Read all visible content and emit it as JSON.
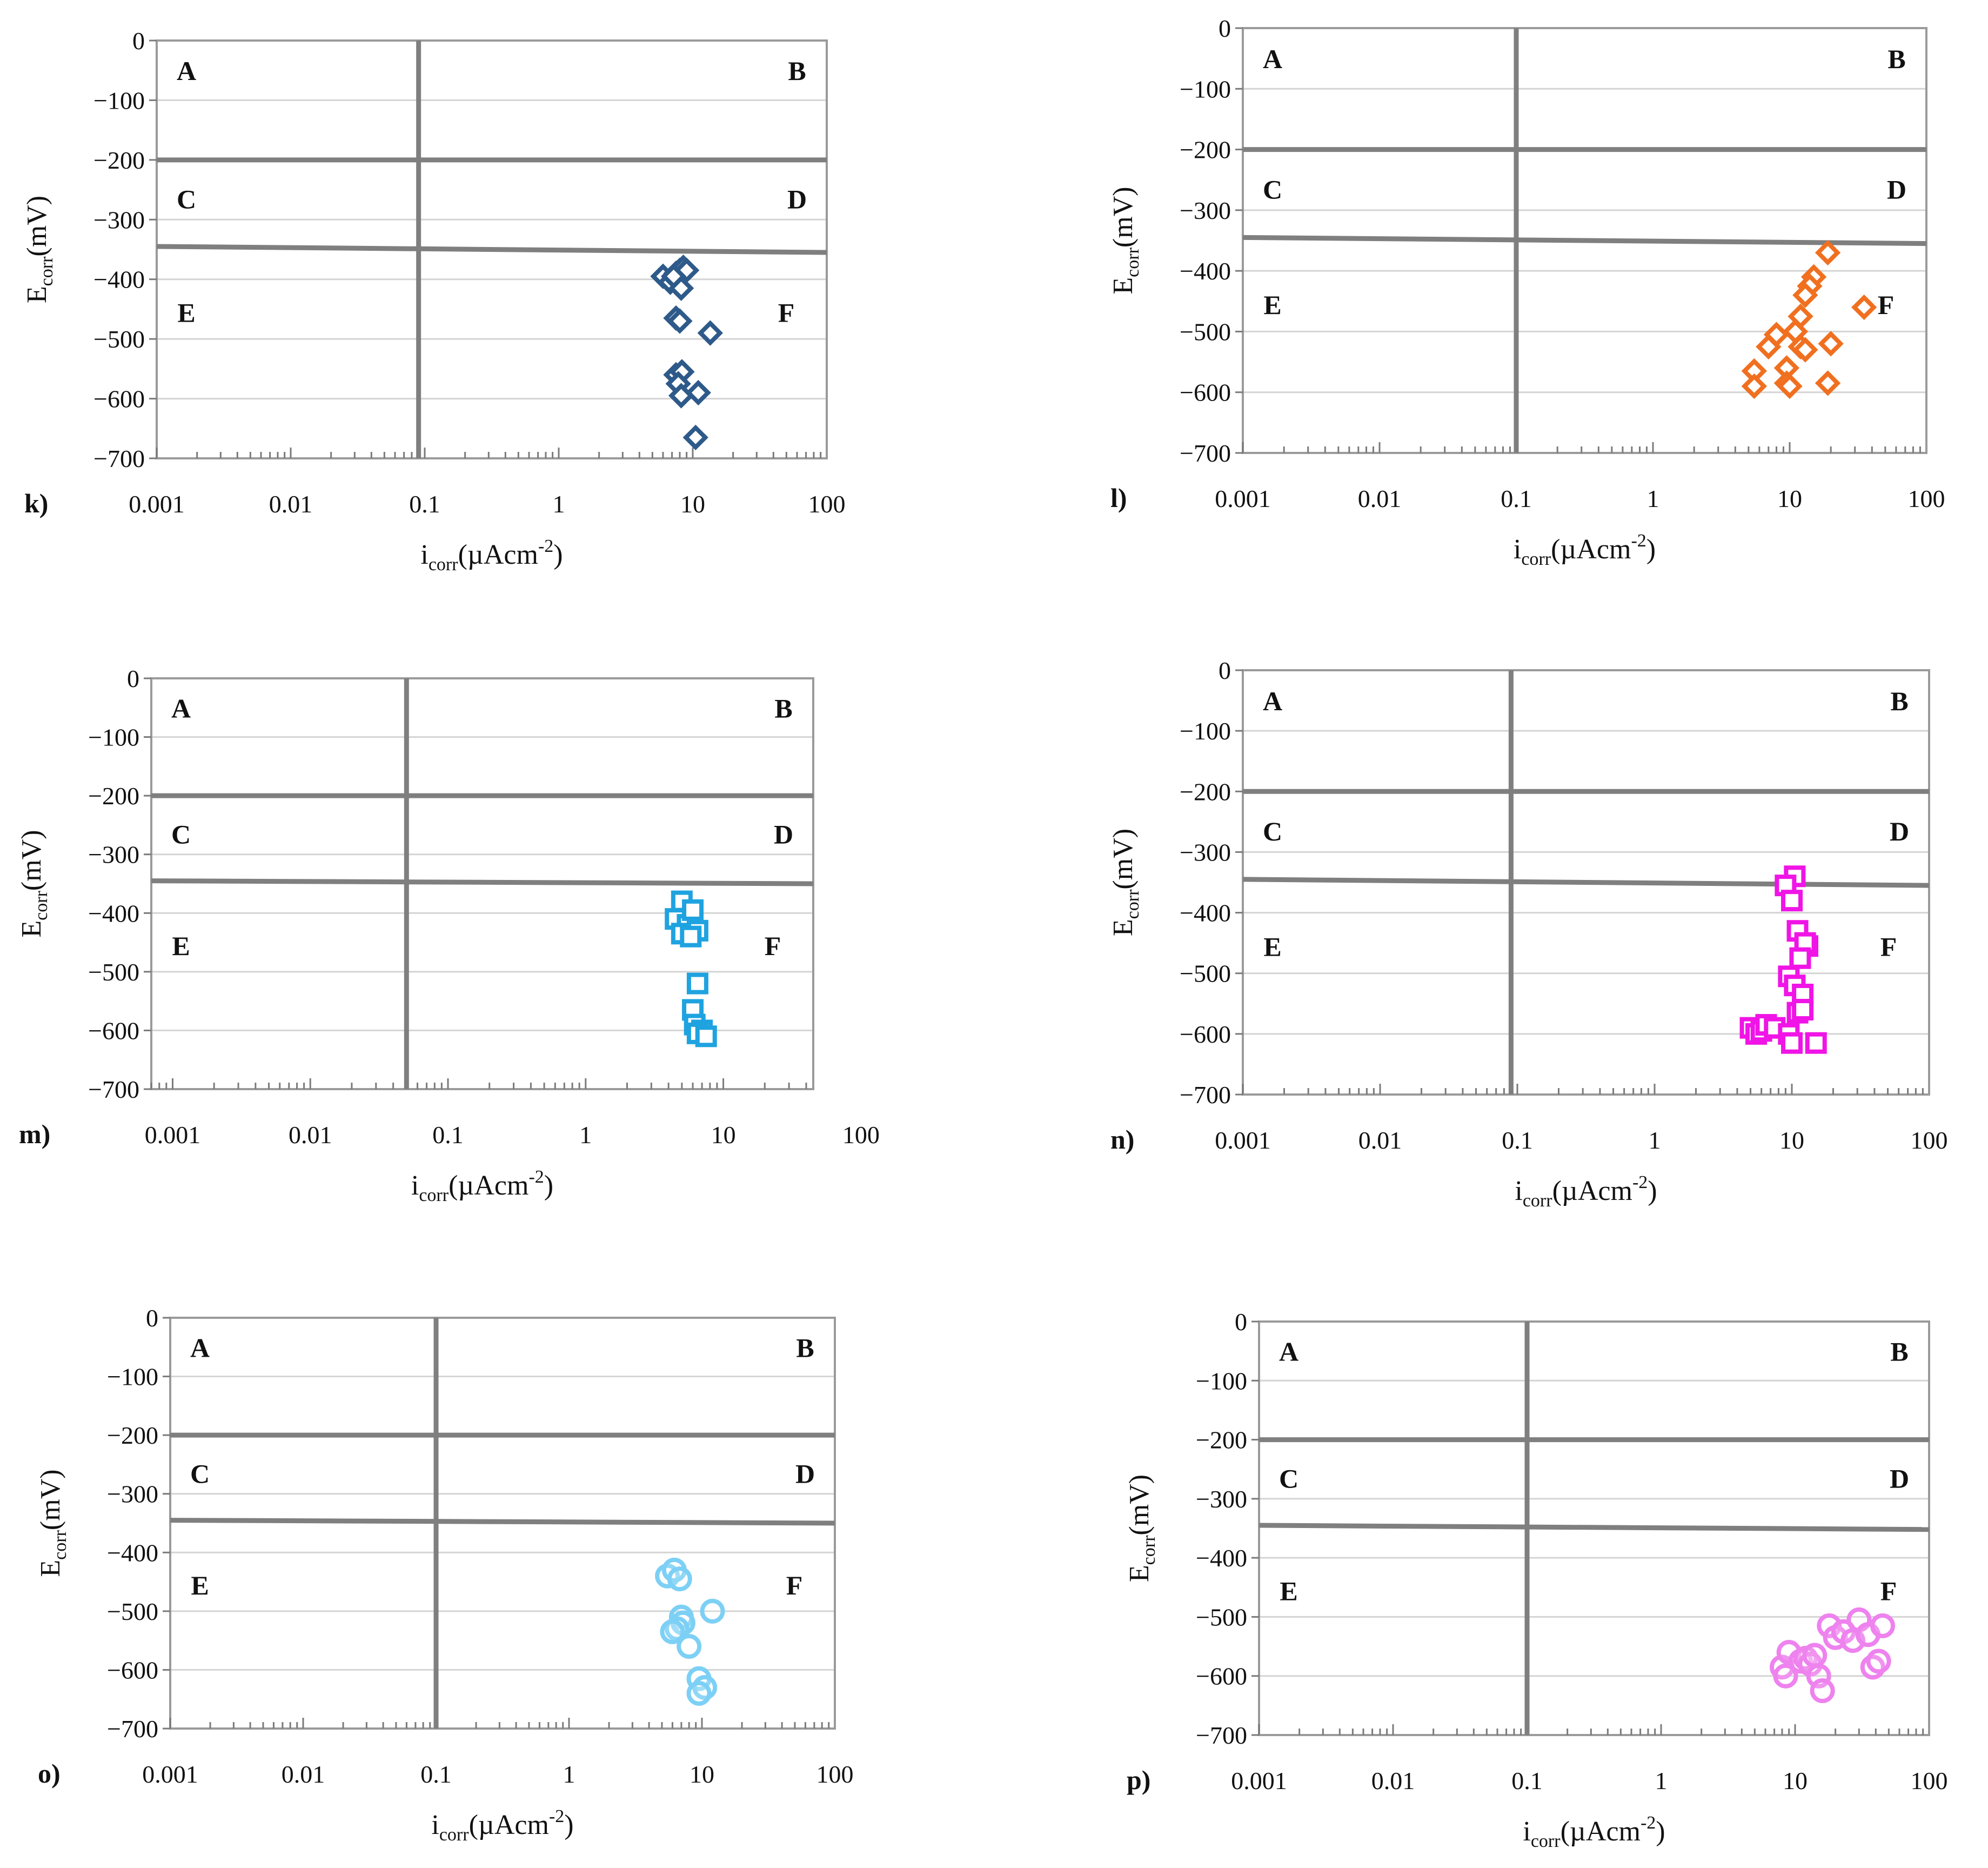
{
  "figure": {
    "x_title_main": "i",
    "x_title_sub": "corr",
    "x_title_unit": "(µAcm",
    "x_title_exp": "-2",
    "x_title_close": ")",
    "y_title_main": "E",
    "y_title_sub": "corr",
    "y_title_unit": "(mV)"
  },
  "chart_data": [
    {
      "type": "scatter",
      "panel_label": "k)",
      "marker": "diamond",
      "color": "#2E5A8A",
      "xscale": "log",
      "xlim": [
        0.001,
        100
      ],
      "ylim": [
        -700,
        0
      ],
      "x_tick_labels": [
        "0.001",
        "0.01",
        "0.1",
        "1",
        "10",
        "100"
      ],
      "y_tick_labels": [
        "0",
        "−100",
        "−200",
        "−300",
        "−400",
        "−500",
        "−600",
        "−700"
      ],
      "regions": {
        "A": "A",
        "B": "B",
        "C": "C",
        "D": "D",
        "E": "E",
        "F": "F"
      },
      "boundaries": {
        "v_line_x": 0.09,
        "h_line1": [
          -200,
          -200
        ],
        "h_line2": [
          -345,
          -355
        ]
      },
      "points": [
        [
          6,
          -395
        ],
        [
          6.8,
          -405
        ],
        [
          7.5,
          -390
        ],
        [
          8,
          -385
        ],
        [
          8.5,
          -380
        ],
        [
          9,
          -385
        ],
        [
          7.2,
          -395
        ],
        [
          8.2,
          -415
        ],
        [
          7.5,
          -465
        ],
        [
          8,
          -470
        ],
        [
          13.5,
          -490
        ],
        [
          7.5,
          -560
        ],
        [
          8.3,
          -555
        ],
        [
          7.8,
          -575
        ],
        [
          11,
          -590
        ],
        [
          8.2,
          -595
        ],
        [
          10.5,
          -665
        ]
      ]
    },
    {
      "type": "scatter",
      "panel_label": "l)",
      "marker": "diamond",
      "color": "#F07020",
      "xscale": "log",
      "xlim": [
        0.001,
        100
      ],
      "ylim": [
        -700,
        0
      ],
      "x_tick_labels": [
        "0.001",
        "0.01",
        "0.1",
        "1",
        "10",
        "100"
      ],
      "y_tick_labels": [
        "0",
        "−100",
        "−200",
        "−300",
        "−400",
        "−500",
        "−600",
        "−700"
      ],
      "regions": {
        "A": "A",
        "B": "B",
        "C": "C",
        "D": "D",
        "E": "E",
        "F": "F"
      },
      "boundaries": {
        "v_line_x": 0.1,
        "h_line1": [
          -200,
          -200
        ],
        "h_line2": [
          -345,
          -355
        ]
      },
      "points": [
        [
          19,
          -370
        ],
        [
          15,
          -410
        ],
        [
          14,
          -425
        ],
        [
          13,
          -440
        ],
        [
          35,
          -460
        ],
        [
          12,
          -475
        ],
        [
          11,
          -500
        ],
        [
          8,
          -505
        ],
        [
          7,
          -525
        ],
        [
          12,
          -525
        ],
        [
          20,
          -520
        ],
        [
          13,
          -530
        ],
        [
          5.5,
          -565
        ],
        [
          9.5,
          -560
        ],
        [
          5.5,
          -590
        ],
        [
          9.5,
          -585
        ],
        [
          10,
          -590
        ],
        [
          19,
          -585
        ]
      ]
    },
    {
      "type": "scatter",
      "panel_label": "m)",
      "marker": "square",
      "color": "#1FA3E0",
      "xscale": "log",
      "xlim": [
        0.0007,
        45
      ],
      "ylim": [
        -700,
        0
      ],
      "x_tick_labels": [
        "0.001",
        "0.01",
        "0.1",
        "1",
        "10",
        "100"
      ],
      "y_tick_labels": [
        "0",
        "−100",
        "−200",
        "−300",
        "−400",
        "−500",
        "−600",
        "−700"
      ],
      "regions": {
        "A": "A",
        "B": "B",
        "C": "C",
        "D": "D",
        "E": "E",
        "F": "F"
      },
      "boundaries": {
        "v_line_x": 0.05,
        "h_line1": [
          -200,
          -200
        ],
        "h_line2": [
          -345,
          -350
        ]
      },
      "points": [
        [
          4.5,
          -410
        ],
        [
          5,
          -380
        ],
        [
          5.5,
          -420
        ],
        [
          5,
          -435
        ],
        [
          6,
          -395
        ],
        [
          6.5,
          -430
        ],
        [
          5.8,
          -440
        ],
        [
          6.5,
          -520
        ],
        [
          6,
          -565
        ],
        [
          6.2,
          -590
        ],
        [
          7,
          -600
        ],
        [
          6.5,
          -605
        ],
        [
          7.5,
          -610
        ]
      ]
    },
    {
      "type": "scatter",
      "panel_label": "n)",
      "marker": "square",
      "color": "#F014E6",
      "xscale": "log",
      "xlim": [
        0.001,
        100
      ],
      "ylim": [
        -700,
        0
      ],
      "x_tick_labels": [
        "0.001",
        "0.01",
        "0.1",
        "1",
        "10",
        "100"
      ],
      "y_tick_labels": [
        "0",
        "−100",
        "−200",
        "−300",
        "−400",
        "−500",
        "−600",
        "−700"
      ],
      "regions": {
        "A": "A",
        "B": "B",
        "C": "C",
        "D": "D",
        "E": "E",
        "F": "F"
      },
      "boundaries": {
        "v_line_x": 0.09,
        "h_line1": [
          -200,
          -200
        ],
        "h_line2": [
          -345,
          -355
        ]
      },
      "points": [
        [
          10.5,
          -340
        ],
        [
          9,
          -355
        ],
        [
          10,
          -380
        ],
        [
          11,
          -430
        ],
        [
          13,
          -455
        ],
        [
          12.5,
          -450
        ],
        [
          11.5,
          -475
        ],
        [
          9.5,
          -505
        ],
        [
          10.5,
          -520
        ],
        [
          12,
          -535
        ],
        [
          11,
          -565
        ],
        [
          12,
          -560
        ],
        [
          5,
          -590
        ],
        [
          5.5,
          -600
        ],
        [
          6,
          -595
        ],
        [
          6.5,
          -585
        ],
        [
          7.5,
          -590
        ],
        [
          9.5,
          -600
        ],
        [
          10,
          -615
        ],
        [
          15,
          -615
        ]
      ]
    },
    {
      "type": "scatter",
      "panel_label": "o)",
      "marker": "circle",
      "color": "#7DD0F5",
      "xscale": "log",
      "xlim": [
        0.001,
        100
      ],
      "ylim": [
        -700,
        0
      ],
      "x_tick_labels": [
        "0.001",
        "0.01",
        "0.1",
        "1",
        "10",
        "100"
      ],
      "y_tick_labels": [
        "0",
        "−100",
        "−200",
        "−300",
        "−400",
        "−500",
        "−600",
        "−700"
      ],
      "regions": {
        "A": "A",
        "B": "B",
        "C": "C",
        "D": "D",
        "E": "E",
        "F": "F"
      },
      "boundaries": {
        "v_line_x": 0.1,
        "h_line1": [
          -200,
          -200
        ],
        "h_line2": [
          -345,
          -350
        ]
      },
      "points": [
        [
          5.5,
          -440
        ],
        [
          6.2,
          -430
        ],
        [
          6.8,
          -445
        ],
        [
          7,
          -510
        ],
        [
          7.2,
          -520
        ],
        [
          6.5,
          -530
        ],
        [
          6,
          -535
        ],
        [
          12,
          -500
        ],
        [
          8,
          -560
        ],
        [
          9.5,
          -615
        ],
        [
          10.5,
          -630
        ],
        [
          9.5,
          -640
        ]
      ]
    },
    {
      "type": "scatter",
      "panel_label": "p)",
      "marker": "circle",
      "color": "#EE82EE",
      "xscale": "log",
      "xlim": [
        0.001,
        100
      ],
      "ylim": [
        -700,
        0
      ],
      "x_tick_labels": [
        "0.001",
        "0.01",
        "0.1",
        "1",
        "10",
        "100"
      ],
      "y_tick_labels": [
        "0",
        "−100",
        "−200",
        "−300",
        "−400",
        "−500",
        "−600",
        "−700"
      ],
      "regions": {
        "A": "A",
        "B": "B",
        "C": "C",
        "D": "D",
        "E": "E",
        "F": "F"
      },
      "boundaries": {
        "v_line_x": 0.1,
        "h_line1": [
          -200,
          -200
        ],
        "h_line2": [
          -345,
          -352
        ]
      },
      "points": [
        [
          8,
          -585
        ],
        [
          8.5,
          -600
        ],
        [
          9,
          -560
        ],
        [
          11,
          -575
        ],
        [
          12,
          -570
        ],
        [
          13,
          -580
        ],
        [
          14,
          -565
        ],
        [
          15,
          -600
        ],
        [
          16,
          -625
        ],
        [
          18,
          -515
        ],
        [
          20,
          -535
        ],
        [
          23,
          -525
        ],
        [
          27,
          -540
        ],
        [
          30,
          -505
        ],
        [
          35,
          -530
        ],
        [
          38,
          -585
        ],
        [
          42,
          -575
        ],
        [
          45,
          -515
        ]
      ]
    }
  ]
}
